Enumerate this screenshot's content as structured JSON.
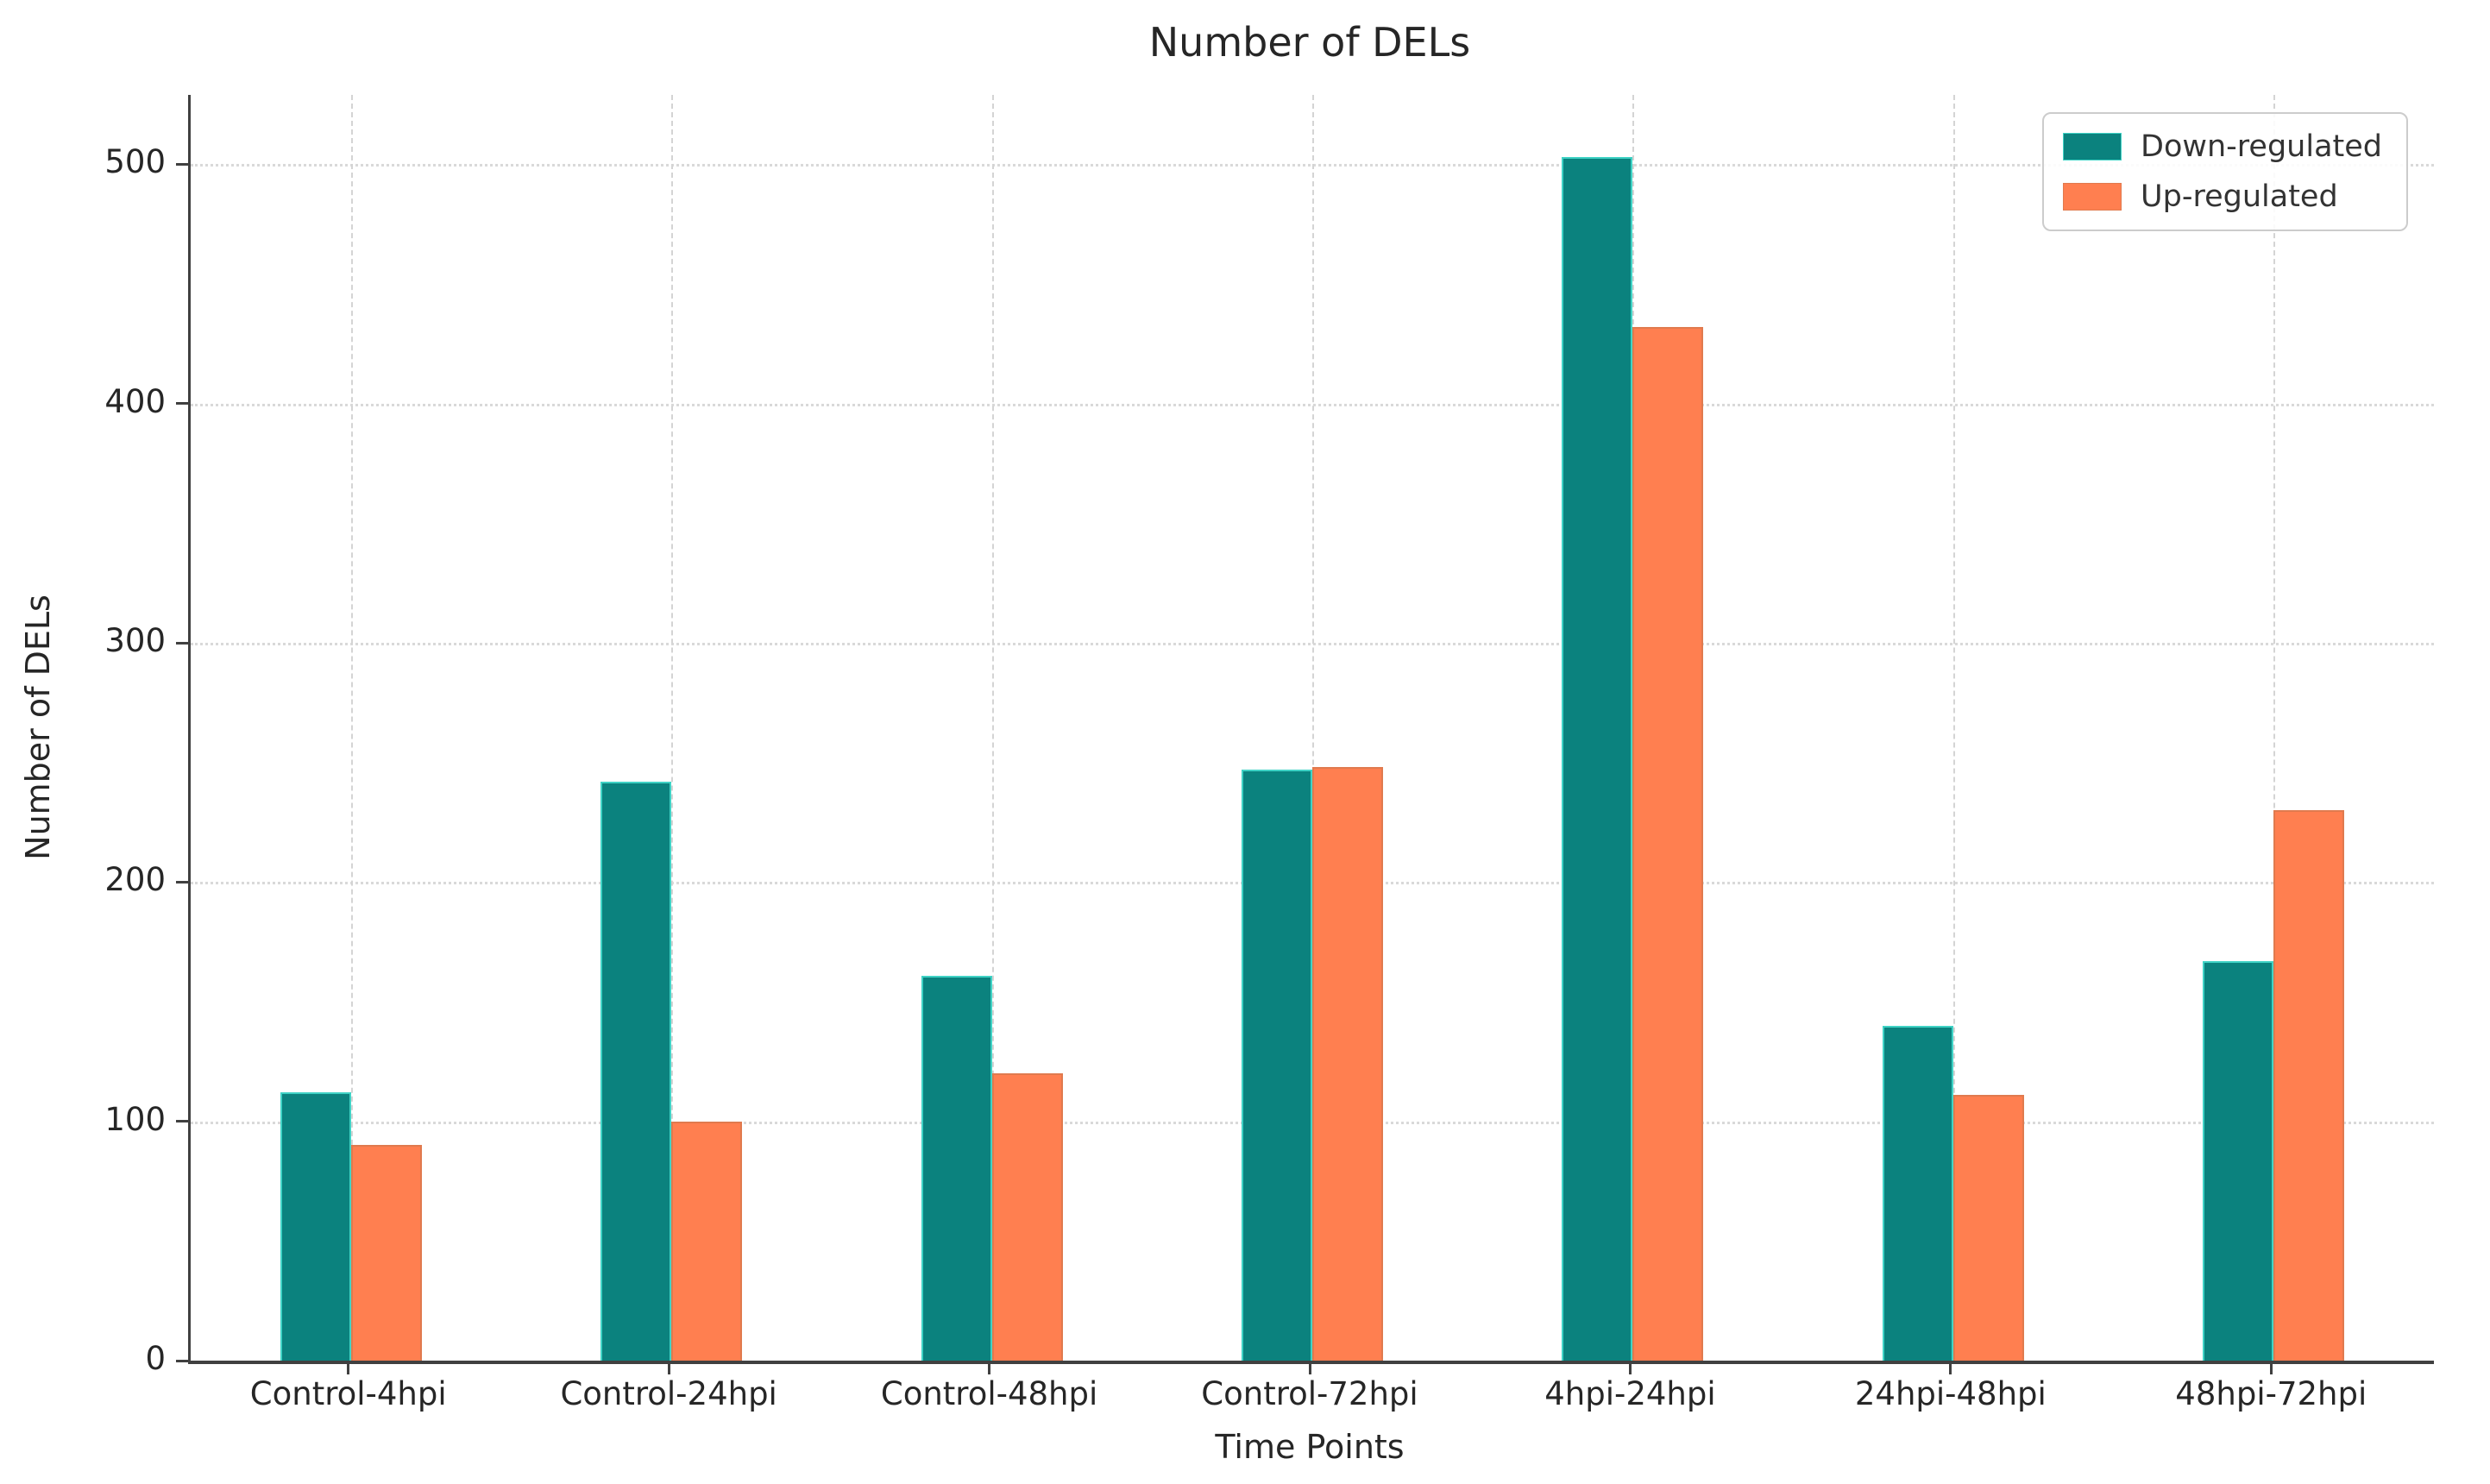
{
  "chart_data": {
    "type": "bar",
    "title": "Number of DELs",
    "xlabel": "Time Points",
    "ylabel": "Number of DELs",
    "categories": [
      "Control-4hpi",
      "Control-24hpi",
      "Control-48hpi",
      "Control-72hpi",
      "4hpi-24hpi",
      "24hpi-48hpi",
      "48hpi-72hpi"
    ],
    "series": [
      {
        "name": "Down-regulated",
        "color": "#0b827e",
        "edge_color": "#3fd2c5",
        "values": [
          112,
          242,
          161,
          247,
          503,
          140,
          167
        ]
      },
      {
        "name": "Up-regulated",
        "color": "#ff7f50",
        "edge_color": "#e07a4e",
        "values": [
          90,
          100,
          120,
          248,
          432,
          111,
          230
        ]
      }
    ],
    "yticks": [
      0,
      100,
      200,
      300,
      400,
      500
    ],
    "ylim": [
      0,
      529
    ],
    "grid": {
      "horizontal": "dotted",
      "vertical": "dashed"
    },
    "legend_position": "upper right"
  }
}
